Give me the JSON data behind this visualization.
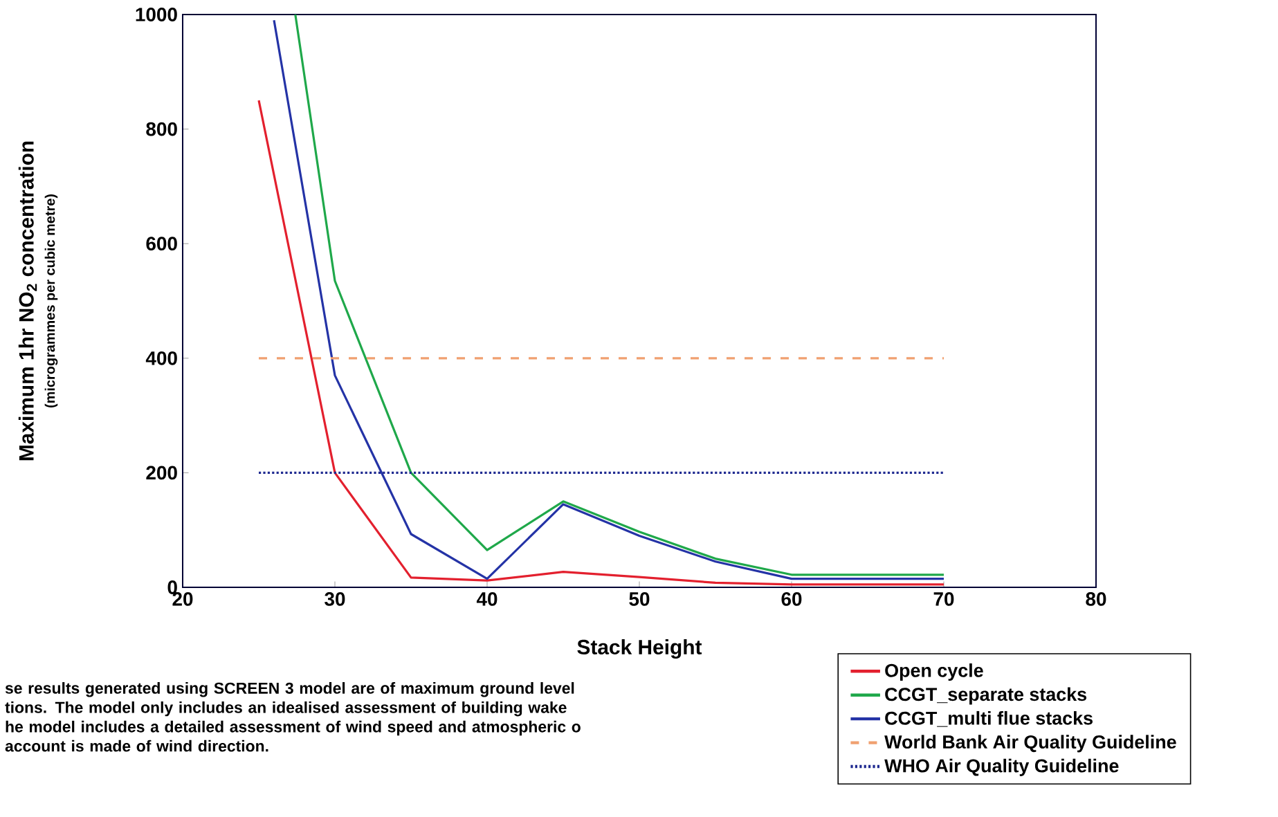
{
  "chart_data": {
    "type": "line",
    "xlabel": "Stack Height",
    "ylabel": "Maximum 1hr NO$_{2}$ concentration",
    "annotations": [
      "(microgrammes per cubic metre)",
      "se results generated using SCREEN 3 model are of maximum ground level tions. The model only includes an idealised assessment of building wake he model includes a detailed assessment of wind speed and atmospheric o account is made of wind direction."
    ],
    "xlim": [
      20,
      80
    ],
    "xticks": [
      20,
      30,
      40,
      50,
      60,
      70,
      80
    ],
    "ylim": [
      0,
      1000
    ],
    "yticks": [
      0,
      200,
      400,
      600,
      800,
      1000
    ],
    "grid": false,
    "legend": "bottom right",
    "line_style": "solid",
    "marker": "none",
    "series": [
      {
        "name": "Open cycle",
        "color": "#e3202e",
        "x": [
          25,
          30,
          35,
          40,
          45,
          50,
          55,
          60,
          65,
          70
        ],
        "values": [
          850,
          200,
          17,
          12,
          27,
          18,
          8,
          5,
          5,
          5
        ]
      },
      {
        "name": "CCGT_separate stacks",
        "color": "#1fa84a",
        "x": [
          27.4,
          30,
          35,
          40,
          45,
          50,
          55,
          60,
          65,
          70
        ],
        "values": [
          1000,
          535,
          200,
          65,
          150,
          97,
          50,
          22,
          22,
          22
        ]
      },
      {
        "name": "CCGT_multi flue stacks",
        "color": "#2433a6",
        "x": [
          26,
          30,
          35,
          40,
          45,
          50,
          55,
          60,
          65,
          70
        ],
        "values": [
          990,
          370,
          93,
          15,
          145,
          90,
          45,
          15,
          15,
          15
        ]
      },
      {
        "name": "World Bank Air Quality Guideline",
        "color": "#f0a070",
        "line_style": "dashed",
        "x": [
          25,
          70
        ],
        "values": [
          400,
          400
        ]
      },
      {
        "name": "WHO Air Quality Guideline",
        "color": "#1f2a90",
        "line_style": "dotted",
        "x": [
          25,
          70
        ],
        "values": [
          200,
          200
        ]
      }
    ]
  }
}
